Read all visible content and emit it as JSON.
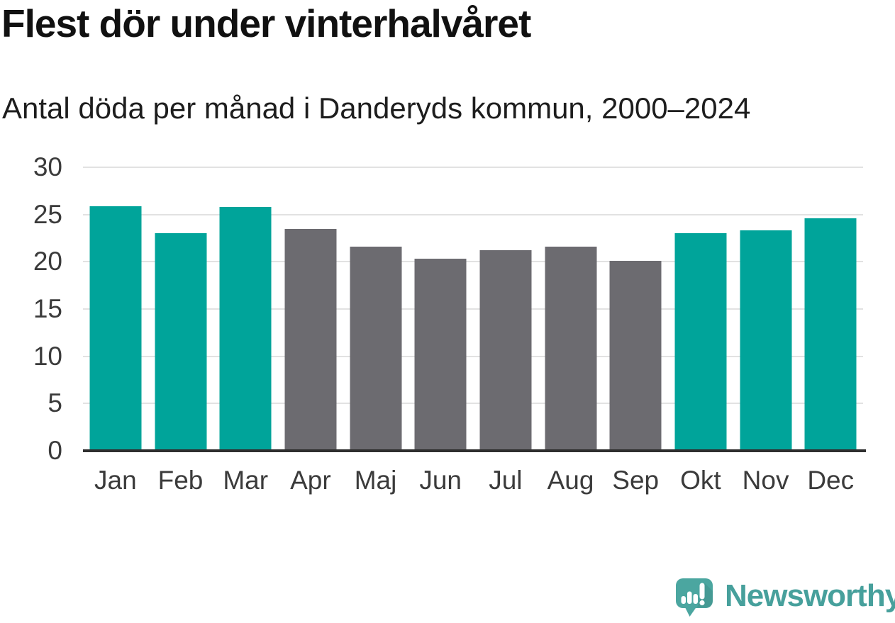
{
  "header": {
    "title": "Flest dör under vinterhalvåret",
    "subtitle": "Antal döda per månad i Danderyds kommun, 2000–2024"
  },
  "chart_data": {
    "type": "bar",
    "title": "Flest dör under vinterhalvåret",
    "subtitle": "Antal döda per månad i Danderyds kommun, 2000–2024",
    "categories": [
      "Jan",
      "Feb",
      "Mar",
      "Apr",
      "Maj",
      "Jun",
      "Jul",
      "Aug",
      "Sep",
      "Okt",
      "Nov",
      "Dec"
    ],
    "values": [
      25.9,
      23.0,
      25.8,
      23.5,
      21.6,
      20.3,
      21.2,
      21.6,
      20.1,
      23.0,
      23.3,
      24.6
    ],
    "groups": [
      "winter",
      "winter",
      "winter",
      "summer",
      "summer",
      "summer",
      "summer",
      "summer",
      "summer",
      "winter",
      "winter",
      "winter"
    ],
    "colors": {
      "winter": "#00a49a",
      "summer": "#6c6b70"
    },
    "xlabel": "",
    "ylabel": "",
    "ylim": [
      0,
      30
    ],
    "yticks": [
      0,
      5,
      10,
      15,
      20,
      25,
      30
    ],
    "grid": true,
    "gridline_color": "#e2e2e2",
    "axis_color": "#2f2f2f",
    "legend_position": "none"
  },
  "footer": {
    "brand": "Newsworthy",
    "brand_color": "#47a09c",
    "logo": {
      "icon": "newsworthy-speech-bubble-bar-chart-icon",
      "bubble_color": "#4ba6a0",
      "glyph_color": "#ffffff"
    }
  }
}
